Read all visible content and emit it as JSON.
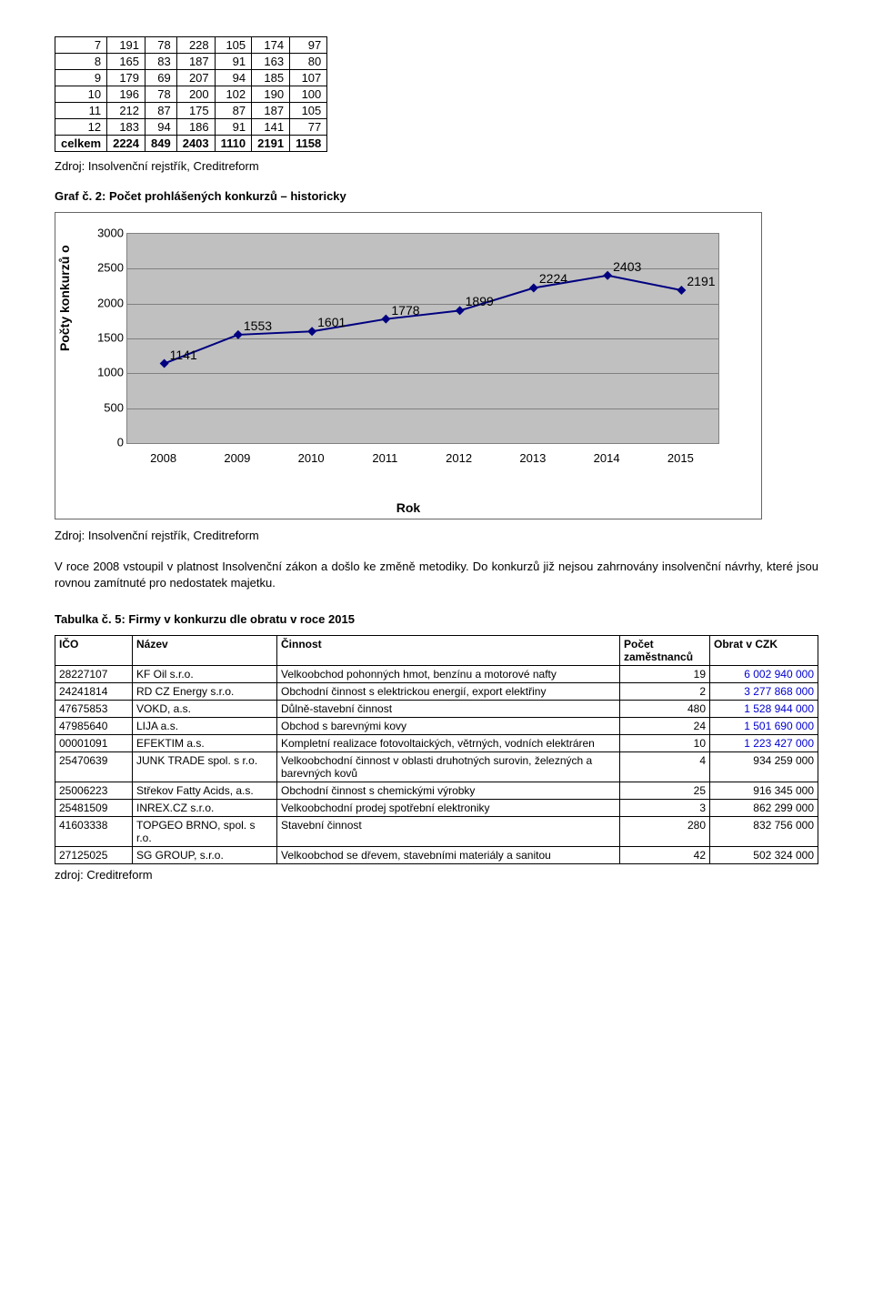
{
  "top_table": {
    "rows": [
      [
        "7",
        "191",
        "78",
        "228",
        "105",
        "174",
        "97"
      ],
      [
        "8",
        "165",
        "83",
        "187",
        "91",
        "163",
        "80"
      ],
      [
        "9",
        "179",
        "69",
        "207",
        "94",
        "185",
        "107"
      ],
      [
        "10",
        "196",
        "78",
        "200",
        "102",
        "190",
        "100"
      ],
      [
        "11",
        "212",
        "87",
        "175",
        "87",
        "187",
        "105"
      ],
      [
        "12",
        "183",
        "94",
        "186",
        "91",
        "141",
        "77"
      ]
    ],
    "total_row": [
      "celkem",
      "2224",
      "849",
      "2403",
      "1110",
      "2191",
      "1158"
    ]
  },
  "source_text": "Zdroj: Insolvenční rejstřík, Creditreform",
  "chart_title": "Graf č. 2: Počet prohlášených konkurzů – historicky",
  "chart": {
    "type": "line",
    "categories": [
      "2008",
      "2009",
      "2010",
      "2011",
      "2012",
      "2013",
      "2014",
      "2015"
    ],
    "values": [
      1141,
      1553,
      1601,
      1778,
      1899,
      2224,
      2403,
      2191
    ],
    "labels": [
      "1141",
      "1553",
      "1601",
      "1778",
      "1899",
      "2224",
      "2403",
      "2191"
    ],
    "ylim": [
      0,
      3000
    ],
    "ytick_step": 500,
    "line_color": "#000080",
    "marker_color": "#ff00ff",
    "background_color": "#c0c0c0",
    "grid_color": "#808080",
    "ylabel": "Počty konkurzů o",
    "xlabel": "Rok",
    "label_fontsize": 14
  },
  "paragraph": "V roce 2008 vstoupil v platnost Insolvenční zákon a došlo ke změně metodiky. Do konkurzů již nejsou zahrnovány insolvenční návrhy, které jsou rovnou zamítnuté pro nedostatek majetku.",
  "table5_title": "Tabulka č. 5: Firmy v konkurzu dle obratu v roce 2015",
  "table5_headers": [
    "IČO",
    "Název",
    "Činnost",
    "Počet zaměstnanců",
    "Obrat v CZK"
  ],
  "companies": [
    {
      "ico": "28227107",
      "name": "KF Oil s.r.o.",
      "act": "Velkoobchod pohonných hmot, benzínu a motorové nafty",
      "cnt": "19",
      "obrat": "6 002 940 000",
      "blue": true
    },
    {
      "ico": "24241814",
      "name": "RD CZ Energy s.r.o.",
      "act": "Obchodní činnost s elektrickou energií, export elektřiny",
      "cnt": "2",
      "obrat": "3 277 868 000",
      "blue": true
    },
    {
      "ico": "47675853",
      "name": "VOKD, a.s.",
      "act": "Důlně-stavební činnost",
      "cnt": "480",
      "obrat": "1 528 944 000",
      "blue": true
    },
    {
      "ico": "47985640",
      "name": "LIJA a.s.",
      "act": "Obchod s barevnými kovy",
      "cnt": "24",
      "obrat": "1 501 690 000",
      "blue": true
    },
    {
      "ico": "00001091",
      "name": "EFEKTIM a.s.",
      "act": "Kompletní realizace fotovoltaických, větrných, vodních elektráren",
      "cnt": "10",
      "obrat": "1 223 427 000",
      "blue": true
    },
    {
      "ico": "25470639",
      "name": "JUNK TRADE spol. s r.o.",
      "act": "Velkoobchodní činnost v oblasti druhotných surovin, železných a barevných kovů",
      "cnt": "4",
      "obrat": "934 259 000",
      "blue": false
    },
    {
      "ico": "25006223",
      "name": "Střekov Fatty Acids, a.s.",
      "act": "Obchodní činnost s chemickými výrobky",
      "cnt": "25",
      "obrat": "916 345 000",
      "blue": false
    },
    {
      "ico": "25481509",
      "name": "INREX.CZ s.r.o.",
      "act": "Velkoobchodní prodej spotřební elektroniky",
      "cnt": "3",
      "obrat": "862 299 000",
      "blue": false
    },
    {
      "ico": "41603338",
      "name": "TOPGEO BRNO, spol. s r.o.",
      "act": "Stavební činnost",
      "cnt": "280",
      "obrat": "832 756 000",
      "blue": false
    },
    {
      "ico": "27125025",
      "name": "SG GROUP, s.r.o.",
      "act": "Velkoobchod se dřevem, stavebními materiály a sanitou",
      "cnt": "42",
      "obrat": "502 324 000",
      "blue": false
    }
  ],
  "footer_source": "zdroj: Creditreform"
}
